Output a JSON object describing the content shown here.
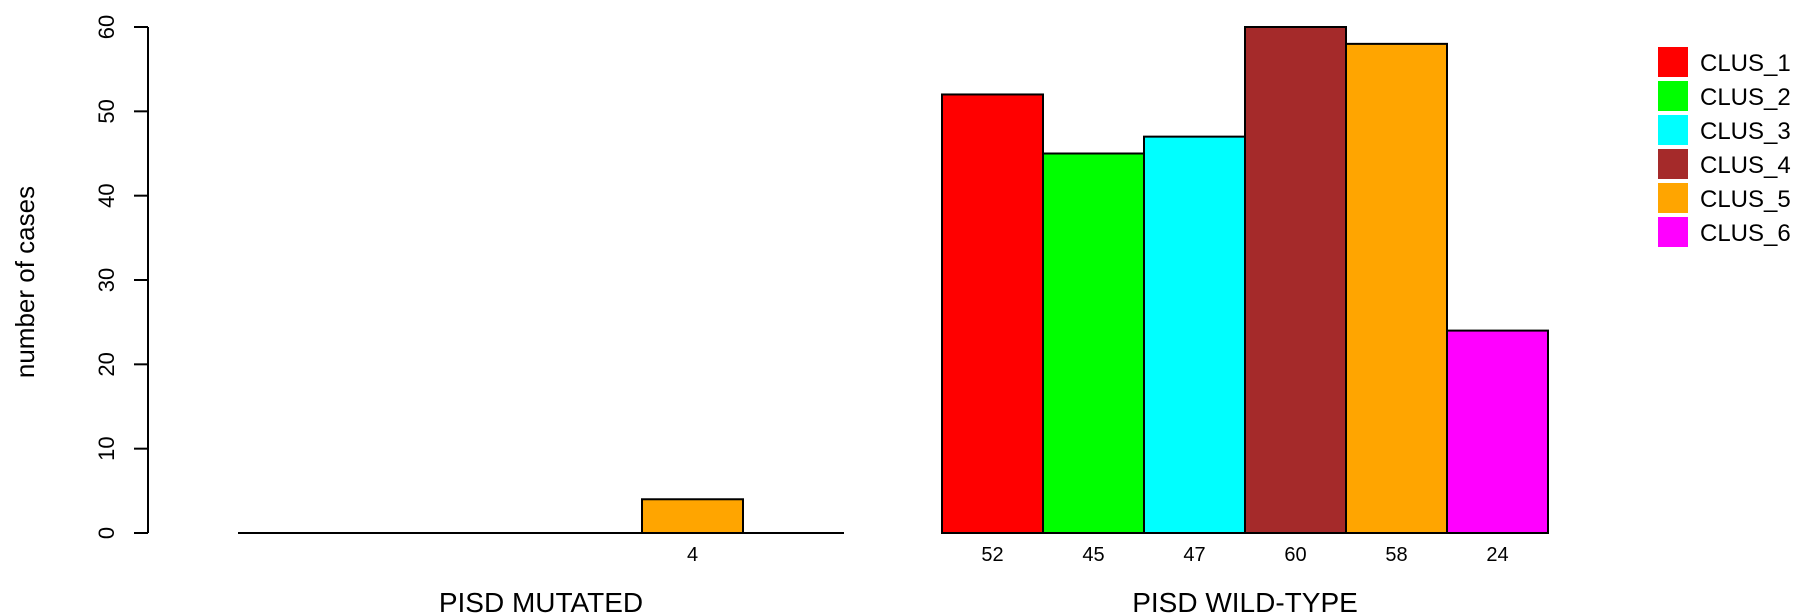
{
  "chart_data": {
    "type": "bar",
    "ylabel": "number of cases",
    "ylim": [
      0,
      60
    ],
    "yticks": [
      0,
      10,
      20,
      30,
      40,
      50,
      60
    ],
    "groups": [
      {
        "label": "PISD MUTATED",
        "values": [
          0,
          0,
          0,
          0,
          4,
          0
        ],
        "value_labels": [
          "",
          "",
          "",
          "",
          "4",
          ""
        ]
      },
      {
        "label": "PISD WILD-TYPE",
        "values": [
          52,
          45,
          47,
          60,
          58,
          24
        ],
        "value_labels": [
          "52",
          "45",
          "47",
          "60",
          "58",
          "24"
        ]
      }
    ],
    "series": [
      {
        "name": "CLUS_1",
        "color": "#ff0000"
      },
      {
        "name": "CLUS_2",
        "color": "#00ff00"
      },
      {
        "name": "CLUS_3",
        "color": "#00ffff"
      },
      {
        "name": "CLUS_4",
        "color": "#a52a2a"
      },
      {
        "name": "CLUS_5",
        "color": "#ffa500"
      },
      {
        "name": "CLUS_6",
        "color": "#ff00ff"
      }
    ],
    "legend_position": "top-right",
    "grid": false
  }
}
